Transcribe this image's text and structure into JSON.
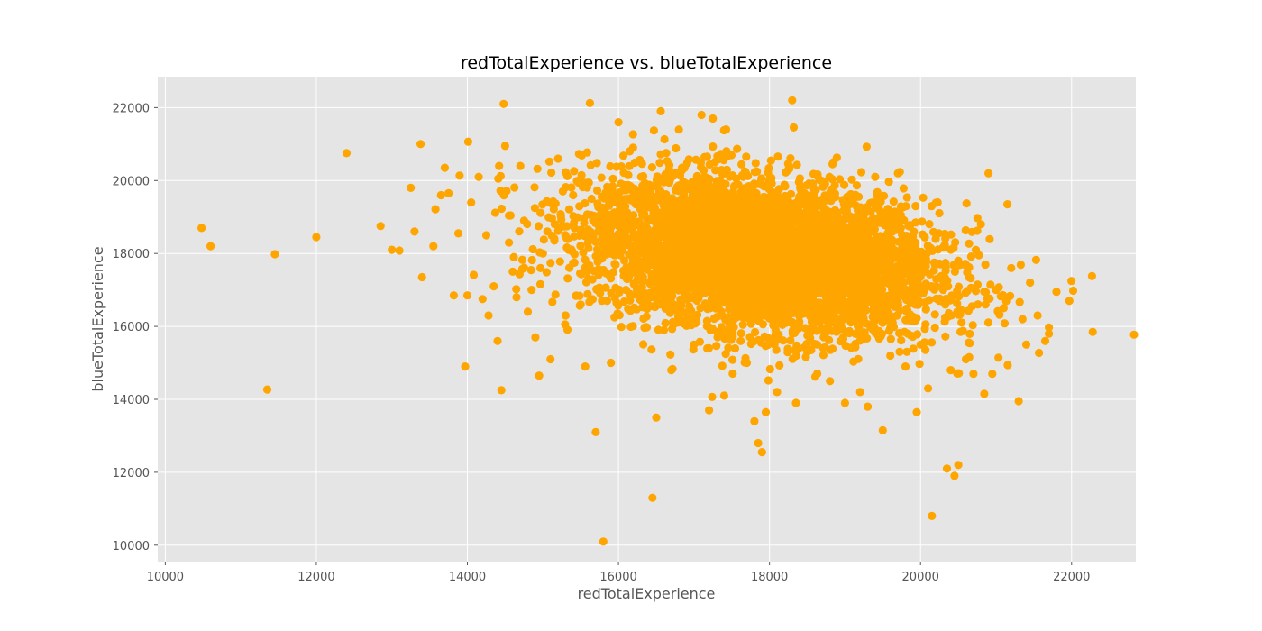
{
  "chart_data": {
    "type": "scatter",
    "title": "redTotalExperience vs. blueTotalExperience",
    "xlabel": "redTotalExperience",
    "ylabel": "blueTotalExperience",
    "xlim": [
      9900,
      22850
    ],
    "ylim": [
      9550,
      22850
    ],
    "xticks": [
      10000,
      12000,
      14000,
      16000,
      18000,
      20000,
      22000
    ],
    "yticks": [
      10000,
      12000,
      14000,
      16000,
      18000,
      20000,
      22000
    ],
    "xtick_labels": [
      "10000",
      "12000",
      "14000",
      "16000",
      "18000",
      "20000",
      "22000"
    ],
    "ytick_labels": [
      "10000",
      "12000",
      "14000",
      "16000",
      "18000",
      "20000",
      "22000"
    ],
    "grid": true,
    "marker_color": "#ffa500",
    "plot_background": "#e5e5e5",
    "grid_color": "#ffffff",
    "center": {
      "x": 17900,
      "y": 17950
    },
    "spread": {
      "x": 1150,
      "y": 1050
    },
    "series": [
      {
        "x": [
          10480,
          10600,
          11350,
          11450,
          12000,
          12400,
          12850,
          13000,
          13100,
          13250,
          13300,
          13380,
          13400,
          13550,
          13650,
          13700,
          13750,
          13820,
          13880,
          13970,
          14000,
          14050,
          14150,
          14200,
          14250,
          14280,
          14350,
          14400,
          14420,
          14450,
          14480,
          14500,
          14550,
          14600,
          14650,
          14700,
          14750,
          14800,
          14850,
          14900,
          14950,
          15000,
          15100,
          15200,
          15300,
          15400,
          15500,
          15560,
          15700,
          15800,
          15850,
          15900,
          16000,
          16150,
          16300,
          16450,
          16500,
          16560,
          16700,
          16800,
          17000,
          17100,
          17200,
          17250,
          17400,
          17700,
          17800,
          17850,
          17900,
          17950,
          18100,
          18200,
          18300,
          18350,
          18500,
          18700,
          18800,
          19000,
          19200,
          19300,
          19400,
          19500,
          19600,
          19700,
          19800,
          19950,
          20000,
          20100,
          20150,
          20200,
          20300,
          20350,
          20400,
          20450,
          20500,
          20550,
          20600,
          20700,
          20800,
          20900,
          20950,
          21000,
          21100,
          21150,
          21200,
          21300,
          21350,
          21400,
          21450,
          21550,
          21650,
          21700,
          21800,
          21970,
          22270,
          22280
        ],
        "y": [
          18700,
          18200,
          14270,
          17980,
          18450,
          20750,
          18750,
          18100,
          18080,
          19800,
          18600,
          21000,
          17350,
          18200,
          19600,
          20350,
          19650,
          16850,
          18550,
          14900,
          16850,
          19400,
          20100,
          16750,
          18500,
          16300,
          17100,
          15600,
          20400,
          14250,
          22100,
          20950,
          18300,
          17500,
          16800,
          20400,
          18900,
          16400,
          17000,
          15700,
          14650,
          18000,
          15100,
          20600,
          16300,
          19600,
          16600,
          14900,
          13100,
          10100,
          16700,
          15000,
          21600,
          20800,
          20100,
          11300,
          13500,
          21900,
          14800,
          21400,
          15500,
          21800,
          13700,
          21700,
          14100,
          15000,
          13400,
          12800,
          12550,
          13650,
          14200,
          16700,
          22200,
          13900,
          15300,
          16500,
          14500,
          13900,
          14200,
          13800,
          20100,
          13150,
          15200,
          20200,
          14900,
          13650,
          15500,
          14300,
          10800,
          18400,
          17000,
          12100,
          14800,
          11900,
          12200,
          17700,
          15100,
          14700,
          18800,
          20200,
          14700,
          17000,
          16500,
          19350,
          17600,
          13950,
          16200,
          15500,
          17200,
          16300,
          15600,
          15800,
          16950,
          16700,
          17380,
          15850
        ]
      }
    ]
  }
}
